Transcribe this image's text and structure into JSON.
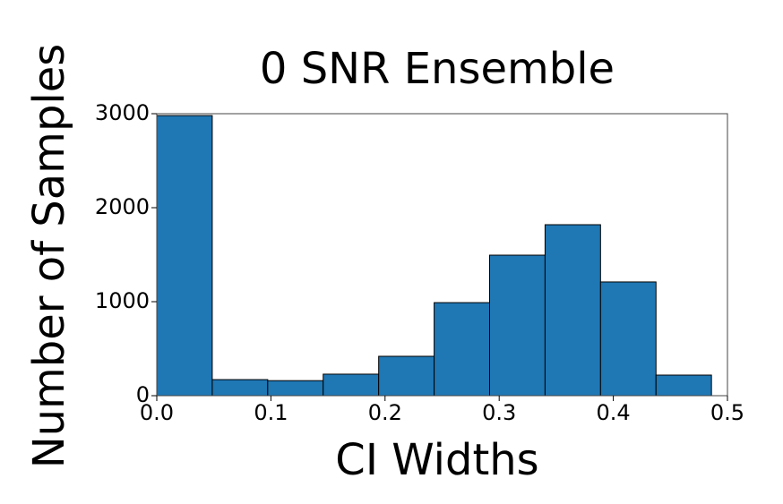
{
  "chart_data": {
    "type": "histogram",
    "title": "0 SNR Ensemble",
    "x_label": "CI Widths",
    "y_label": "Number of Samples",
    "bins": [
      0,
      0.0486,
      0.0972,
      0.1458,
      0.1944,
      0.243,
      0.2916,
      0.3402,
      0.3888,
      0.4374,
      0.486
    ],
    "values": [
      2980,
      171,
      160,
      229,
      419,
      990,
      1495,
      1819,
      1210,
      219
    ],
    "color": "#1f77b4",
    "edgecolor": "#000000",
    "xlim": [
      0,
      0.5
    ],
    "xticks": [
      {
        "value": 0,
        "label": "0.0"
      },
      0.1,
      0.2,
      0.3,
      0.4,
      0.5
    ],
    "ylim": [
      0,
      3000
    ],
    "yticks": [
      0,
      1000,
      2000,
      3000
    ]
  }
}
